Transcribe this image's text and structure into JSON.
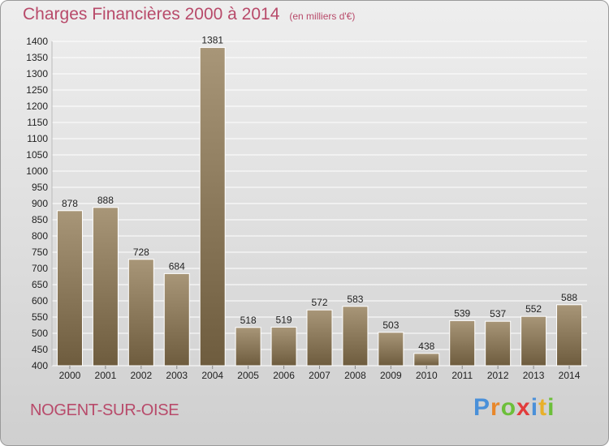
{
  "title": "Charges Financières 2000 à 2014",
  "subtitle": "(en milliers d'€)",
  "town": "NOGENT-SUR-OISE",
  "logo": {
    "text": "Proxiti",
    "letters": [
      {
        "ch": "P",
        "color": "#4a90d9"
      },
      {
        "ch": "r",
        "color": "#e8872a"
      },
      {
        "ch": "o",
        "color": "#6cbf3a"
      },
      {
        "ch": "x",
        "color": "#e23c3c"
      },
      {
        "ch": "i",
        "color": "#4a90d9"
      },
      {
        "ch": "t",
        "color": "#e8b02a"
      },
      {
        "ch": "i",
        "color": "#6cbf3a"
      }
    ]
  },
  "chart_data": {
    "type": "bar",
    "categories": [
      "2000",
      "2001",
      "2002",
      "2003",
      "2004",
      "2005",
      "2006",
      "2007",
      "2008",
      "2009",
      "2010",
      "2011",
      "2012",
      "2013",
      "2014"
    ],
    "values": [
      878,
      888,
      728,
      684,
      1381,
      518,
      519,
      572,
      583,
      503,
      438,
      539,
      537,
      552,
      588
    ],
    "ylim": [
      400,
      1400
    ],
    "ytick_step": 50,
    "grid": true,
    "bar_color_top": "#a89678",
    "bar_color_bottom": "#6e5c3e"
  }
}
